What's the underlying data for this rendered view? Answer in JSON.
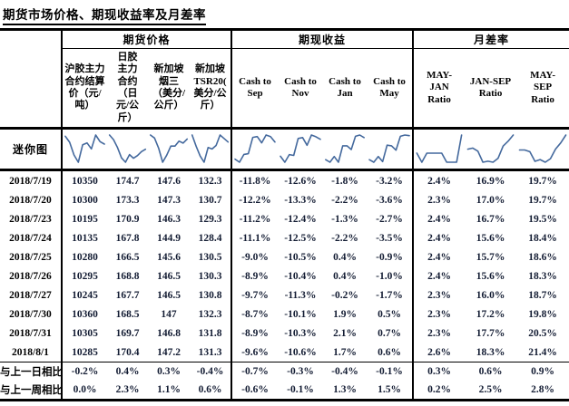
{
  "title": "期货市场价格、期现收益率及月差率",
  "colors": {
    "sparkline": "#44699D",
    "value_text": "#131C33",
    "border": "#000000"
  },
  "table": {
    "groups": [
      {
        "label": "期货价格",
        "span": 4
      },
      {
        "label": "期现收益",
        "span": 4
      },
      {
        "label": "月差率",
        "span": 3
      }
    ],
    "columns": [
      {
        "label": "沪胶主力\n合约结算\n价（元/\n吨）"
      },
      {
        "label": "日胶\n主力\n合约\n（日\n元/公\n斤）"
      },
      {
        "label": "新加坡\n烟三\n（美分/\n公斤）"
      },
      {
        "label": "新加坡\nTSR20(\n美分/公\n斤）"
      },
      {
        "label": "Cash to\nSep"
      },
      {
        "label": "Cash to\nNov"
      },
      {
        "label": "Cash to\nJan"
      },
      {
        "label": "Cash to\nMay"
      },
      {
        "label": "MAY-\nJAN\nRatio"
      },
      {
        "label": "JAN-SEP\nRatio"
      },
      {
        "label": "MAY-\nSEP\nRatio"
      }
    ],
    "sparkline_row_label": "迷你图",
    "rows": [
      {
        "date": "2018/7/19",
        "values": [
          "10350",
          "174.7",
          "147.6",
          "132.3",
          "-11.8%",
          "-12.6%",
          "-1.8%",
          "-3.2%",
          "2.4%",
          "16.9%",
          "19.7%"
        ]
      },
      {
        "date": "2018/7/20",
        "values": [
          "10300",
          "173.3",
          "147.3",
          "130.7",
          "-12.2%",
          "-13.3%",
          "-2.2%",
          "-3.6%",
          "2.3%",
          "17.0%",
          "19.7%"
        ]
      },
      {
        "date": "2018/7/23",
        "values": [
          "10195",
          "170.9",
          "146.3",
          "129.3",
          "-11.2%",
          "-12.4%",
          "-1.3%",
          "-2.7%",
          "2.4%",
          "16.7%",
          "19.5%"
        ]
      },
      {
        "date": "2018/7/24",
        "values": [
          "10135",
          "167.8",
          "144.9",
          "128.4",
          "-11.1%",
          "-12.5%",
          "-2.2%",
          "-3.5%",
          "2.4%",
          "15.6%",
          "18.4%"
        ]
      },
      {
        "date": "2018/7/25",
        "values": [
          "10280",
          "166.5",
          "145.6",
          "130.5",
          "-9.0%",
          "-10.5%",
          "0.4%",
          "-0.9%",
          "2.4%",
          "15.7%",
          "18.6%"
        ]
      },
      {
        "date": "2018/7/26",
        "values": [
          "10295",
          "168.8",
          "146.5",
          "130.3",
          "-8.9%",
          "-10.4%",
          "0.4%",
          "-1.0%",
          "2.4%",
          "15.6%",
          "18.3%"
        ]
      },
      {
        "date": "2018/7/27",
        "values": [
          "10245",
          "167.7",
          "146.5",
          "130.8",
          "-9.7%",
          "-11.3%",
          "-0.2%",
          "-1.7%",
          "2.3%",
          "16.0%",
          "18.7%"
        ]
      },
      {
        "date": "2018/7/30",
        "values": [
          "10360",
          "168.5",
          "147",
          "132.3",
          "-8.7%",
          "-10.1%",
          "1.9%",
          "0.5%",
          "2.3%",
          "17.2%",
          "19.8%"
        ]
      },
      {
        "date": "2018/7/31",
        "values": [
          "10305",
          "169.7",
          "146.8",
          "131.8",
          "-8.9%",
          "-10.3%",
          "2.1%",
          "0.7%",
          "2.3%",
          "17.7%",
          "20.5%"
        ]
      },
      {
        "date": "2018/8/1",
        "values": [
          "10285",
          "170.4",
          "147.2",
          "131.3",
          "-9.6%",
          "-10.6%",
          "1.7%",
          "0.6%",
          "2.6%",
          "18.3%",
          "21.4%"
        ]
      }
    ],
    "footer_rows": [
      {
        "label": "与上一日相比",
        "values": [
          "-0.2%",
          "0.4%",
          "0.3%",
          "-0.4%",
          "-0.7%",
          "-0.3%",
          "-0.4%",
          "-0.1%",
          "0.3%",
          "0.6%",
          "0.9%"
        ]
      },
      {
        "label": "与上一周相比",
        "values": [
          "0.0%",
          "2.3%",
          "1.1%",
          "0.6%",
          "-0.6%",
          "-0.1%",
          "1.3%",
          "1.5%",
          "0.2%",
          "2.5%",
          "2.8%"
        ]
      }
    ]
  }
}
